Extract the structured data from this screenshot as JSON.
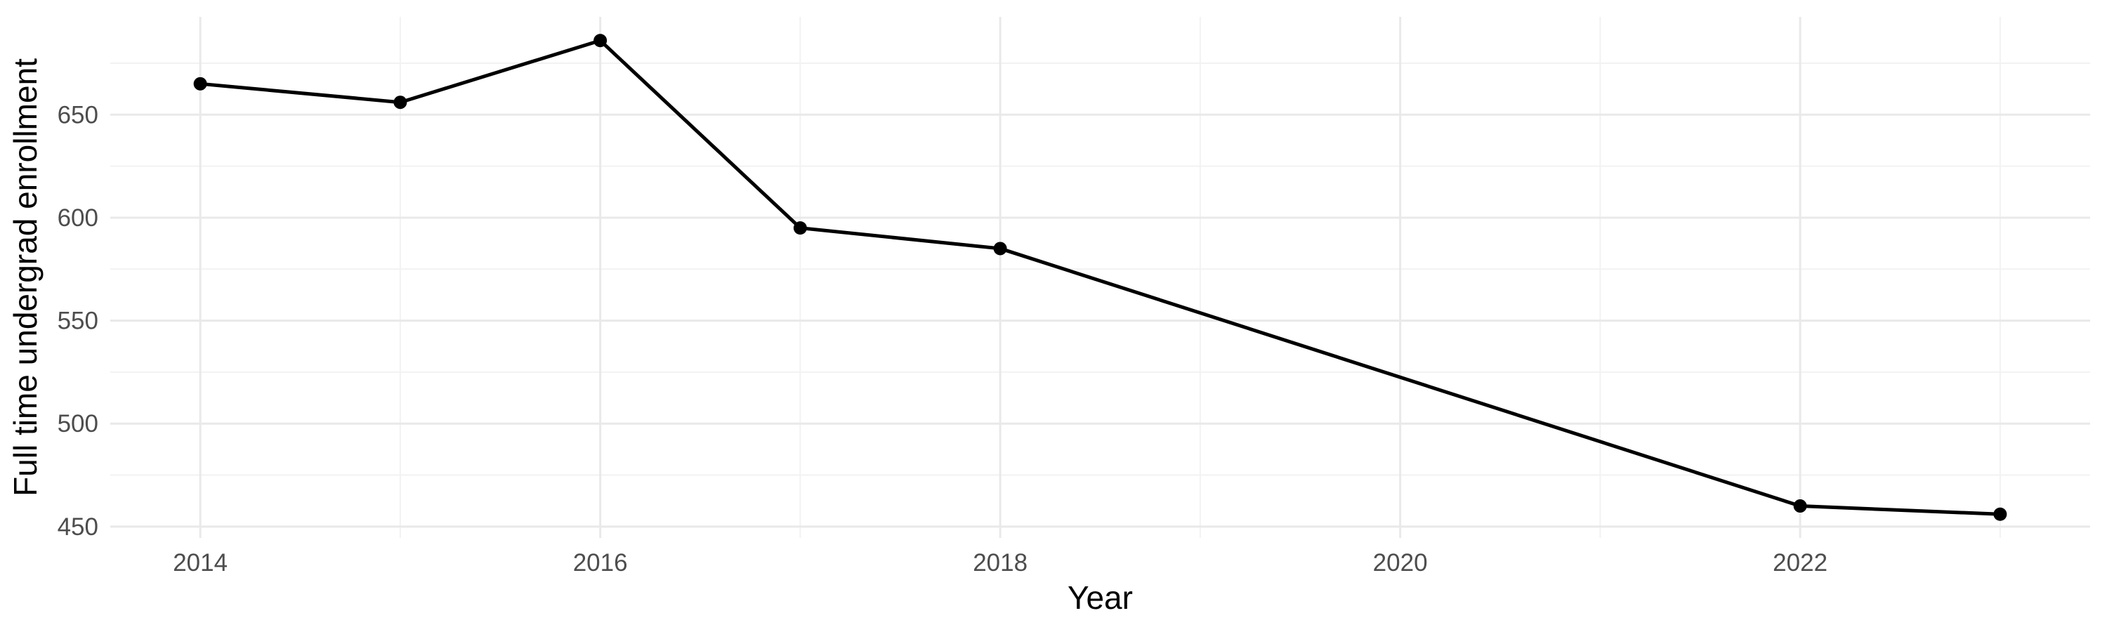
{
  "chart_data": {
    "type": "line",
    "title": "",
    "xlabel": "Year",
    "ylabel": "Full time undergrad enrollment",
    "series": [
      {
        "name": "Full time undergrad enrollment",
        "x": [
          2014,
          2015,
          2016,
          2017,
          2018,
          2022,
          2023
        ],
        "y": [
          665,
          656,
          686,
          595,
          585,
          460,
          456
        ]
      }
    ],
    "x_domain": [
      2013.55,
      2023.45
    ],
    "y_domain": [
      444.5,
      697.5
    ],
    "x_ticks_major": [
      2014,
      2016,
      2018,
      2020,
      2022
    ],
    "x_ticks_minor": [
      2015,
      2017,
      2019,
      2021,
      2023
    ],
    "y_ticks_major": [
      450,
      500,
      550,
      600,
      650
    ],
    "y_ticks_minor": [
      475,
      525,
      575,
      625,
      675
    ],
    "grid": "major+minor",
    "legend": "none",
    "point_marker": "filled-circle",
    "colors": {
      "line": "#000000",
      "point": "#000000",
      "grid_major": "#E9E9E9",
      "grid_minor": "#F2F2F2",
      "tick_label": "#4D4D4D",
      "axis_title": "#000000",
      "background": "#FFFFFF"
    }
  }
}
